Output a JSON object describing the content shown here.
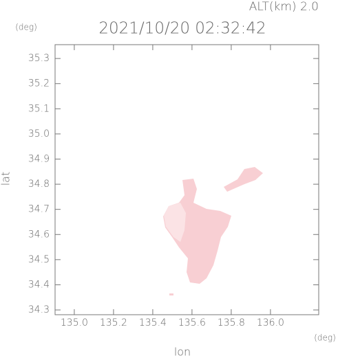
{
  "chart_data": {
    "type": "map",
    "title": "2021/10/20 02:32:42",
    "subtitle": "ALT(km) 2.0",
    "x_label": "lon",
    "y_label": "lat",
    "x_unit": "(deg)",
    "y_unit": "(deg)",
    "xlim": [
      134.902,
      136.246
    ],
    "ylim": [
      34.281,
      35.355
    ],
    "xticks": [
      {
        "value": 135.0,
        "label": "135.0"
      },
      135.2,
      135.4,
      135.6,
      135.8,
      {
        "value": 136.0,
        "label": "136.0"
      }
    ],
    "yticks": [
      34.3,
      34.4,
      34.5,
      34.6,
      34.7,
      34.8,
      34.9,
      {
        "value": 35.0,
        "label": "35.0"
      },
      35.1,
      35.2,
      35.3
    ],
    "color": "#666666"
  }
}
